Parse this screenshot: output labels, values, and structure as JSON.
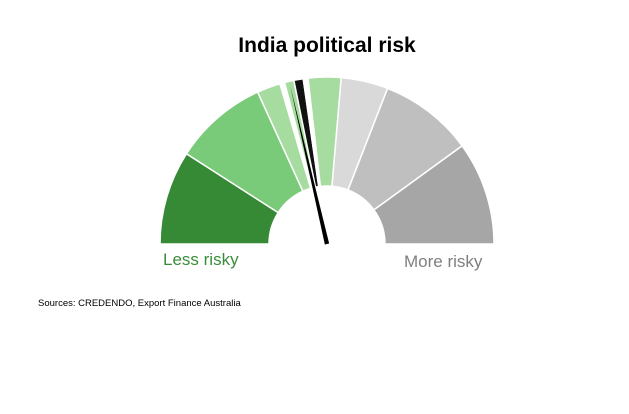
{
  "chart_data": {
    "type": "gauge",
    "title": "India political risk",
    "scale_min": 0,
    "scale_max": 14,
    "segments": [
      {
        "value": 2,
        "color": "#368a36"
      },
      {
        "value": 2,
        "color": "#79ca79"
      },
      {
        "value": 0.5,
        "color": "#a7dca1"
      },
      {
        "value": 0.1,
        "color": "#ffffff"
      },
      {
        "value": 0.2,
        "color": "#a7dca1"
      },
      {
        "value": 0.2,
        "color": "#111111"
      },
      {
        "value": 0.1,
        "color": "#ffffff"
      },
      {
        "value": 0.7,
        "color": "#a7dca1"
      },
      {
        "value": 1,
        "color": "#d9d9d9"
      },
      {
        "value": 2,
        "color": "#bfbfbf"
      },
      {
        "value": 2.2,
        "color": "#a6a6a6"
      },
      {
        "value": 3,
        "color": "#ffffff"
      }
    ],
    "needle_value": 4.7,
    "needle_color": "#000000",
    "label_low": "Less risky",
    "label_low_color": "#3b8d3b",
    "label_high": "More risky",
    "label_high_color": "#7f7f7f"
  },
  "source_text": "Sources: CREDENDO, Export Finance Australia"
}
